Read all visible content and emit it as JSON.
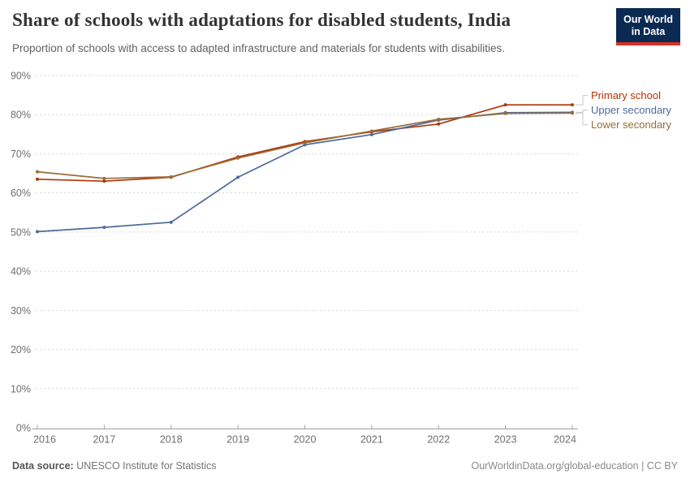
{
  "header": {
    "title": "Share of schools with adaptations for disabled students, India",
    "subtitle": "Proportion of schools with access to adapted infrastructure and materials for students with disabilities.",
    "logo": {
      "line1": "Our World",
      "line2": "in Data",
      "bg_color": "#0a2a52",
      "accent_color": "#d93025"
    }
  },
  "chart_data": {
    "type": "line",
    "title": "Share of schools with adaptations for disabled students, India",
    "x": [
      2016,
      2017,
      2018,
      2019,
      2020,
      2021,
      2022,
      2023,
      2024
    ],
    "series": [
      {
        "name": "Primary school",
        "color": "#B13507",
        "values": [
          63.5,
          63.0,
          64.0,
          69.2,
          73.1,
          75.6,
          77.6,
          82.5,
          82.5
        ]
      },
      {
        "name": "Upper secondary",
        "color": "#4C6A9C",
        "values": [
          50.1,
          51.2,
          52.5,
          64.0,
          72.3,
          74.9,
          78.6,
          80.5,
          80.6
        ]
      },
      {
        "name": "Lower secondary",
        "color": "#996D39",
        "values": [
          65.4,
          63.7,
          64.1,
          68.9,
          72.8,
          75.8,
          78.8,
          80.3,
          80.4
        ]
      }
    ],
    "ylim": [
      0,
      90
    ],
    "yticks": [
      0,
      10,
      20,
      30,
      40,
      50,
      60,
      70,
      80,
      90
    ],
    "ytick_suffix": "%",
    "grid": "dashed-horizontal",
    "legend_position": "right-end-labels",
    "grid_color": "#d8d8d8",
    "axis_color": "#a0a0a0",
    "tick_label_color": "#6e6e6e",
    "connector_color": "#c8c8c8"
  },
  "footer": {
    "source_label": "Data source:",
    "source_value": " UNESCO Institute for Statistics",
    "credit": "OurWorldinData.org/global-education | CC BY"
  }
}
